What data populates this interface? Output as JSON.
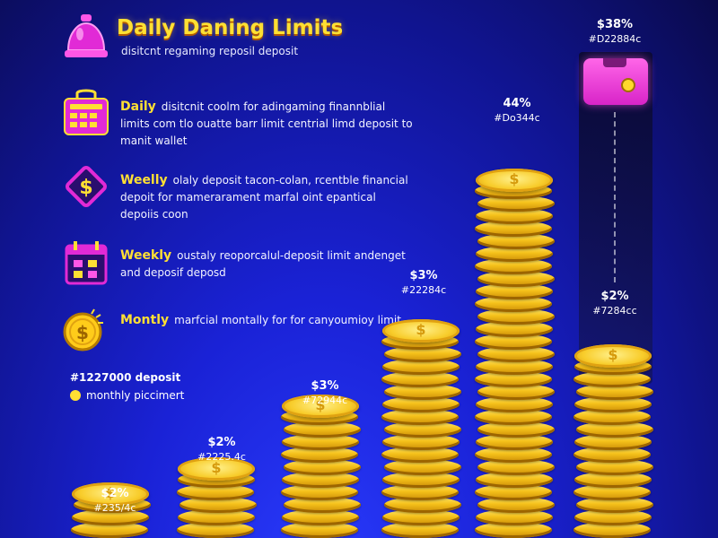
{
  "header": {
    "title": "Daily Daning Limits",
    "subtitle": "disitcnt regaming reposil deposit"
  },
  "features": [
    {
      "icon": "bell-icon",
      "head": "",
      "text": ""
    },
    {
      "icon": "calculator-bag-icon",
      "head": "Daily",
      "text": "disitcnit coolm for adingaming finannblial limits com tlo ouatte barr limit centrial limd deposit to manit wallet"
    },
    {
      "icon": "dollar-diamond-icon",
      "head": "Weelly",
      "text": "olaly deposit tacon-colan, rcentble financial depoit for mamerarament marfal oint epantical depoiis coon"
    },
    {
      "icon": "calendar-icon",
      "head": "Weekly",
      "text": "oustaly reoporcalul-deposit limit andenget and deposif deposd"
    },
    {
      "icon": "dollar-coin-icon",
      "head": "Montly",
      "text": "marfcial montally for for canyoumioy limit."
    }
  ],
  "notes": {
    "amount": "#1227000 deposit",
    "label": "monthly piccimert"
  },
  "stacks": [
    {
      "pct": "$2%",
      "code": "#235/4c",
      "coins": 3
    },
    {
      "pct": "$2%",
      "code": "#2225.4c",
      "coins": 5
    },
    {
      "pct": "$3%",
      "code": "#72944c",
      "coins": 10
    },
    {
      "pct": "$3%",
      "code": "#22284c",
      "coins": 16
    },
    {
      "pct": "44%",
      "code": "#Do344c",
      "coins": 28
    },
    {
      "pct": "$2%",
      "code": "#7284cc",
      "coins": 14
    }
  ],
  "wallet_label": {
    "pct": "$38%",
    "code": "#D22884c"
  },
  "colors": {
    "accent": "#ffe033",
    "magenta": "#e12ad6",
    "background": "#1a22d6"
  }
}
